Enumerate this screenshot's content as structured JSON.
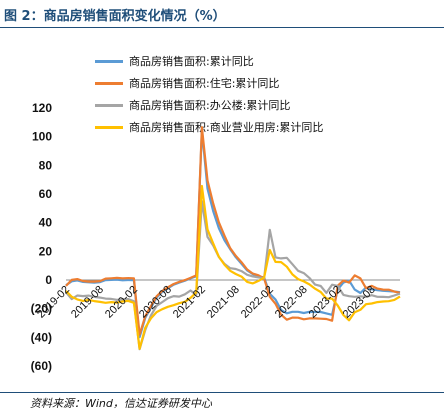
{
  "figure": {
    "title": "图 2：商品房销售面积变化情况（%）",
    "source": "资料来源：Wind，信达证券研发中心"
  },
  "chart_data": {
    "type": "line",
    "ylim": [
      -60,
      120
    ],
    "y_ticks": [
      120,
      100,
      80,
      60,
      40,
      20,
      0,
      -20,
      -40,
      -60
    ],
    "y_tick_labels": [
      "120",
      "100",
      "80",
      "60",
      "40",
      "20",
      "0",
      "(20)",
      "(40)",
      "(60)"
    ],
    "x_tick_labels": [
      "2019-02",
      "2019-08",
      "2020-02",
      "2020-08",
      "2021-02",
      "2021-08",
      "2022-02",
      "2022-08",
      "2023-02",
      "2023-08"
    ],
    "x_tick_index": [
      0,
      6,
      12,
      18,
      24,
      30,
      36,
      42,
      48,
      54
    ],
    "legend_position": "top",
    "grid": false,
    "series": [
      {
        "name": "商品房销售面积:累计同比",
        "color": "#5b9bd5",
        "values": [
          -3.6,
          -0.9,
          -0.3,
          -1.3,
          -1.6,
          -1.8,
          -1.5,
          -0.1,
          0.1,
          0.2,
          -0.2,
          0.0,
          -0.1,
          -39.9,
          -26.3,
          -19.3,
          -12.3,
          -8.4,
          -5.8,
          -3.3,
          -1.8,
          -0.5,
          1.1,
          2.6,
          104.9,
          63.8,
          48.1,
          36.3,
          27.7,
          21.5,
          15.9,
          11.3,
          6.6,
          4.1,
          2.4,
          1.9,
          -9.6,
          -13.6,
          -20.9,
          -23.2,
          -22.2,
          -22.2,
          -23.0,
          -22.2,
          -22.3,
          -22.3,
          -23.3,
          -24.3,
          -6.6,
          -1.8,
          -0.4,
          -6.7,
          -9.1,
          -5.2,
          -6.5,
          -7.1,
          -7.5,
          -7.8,
          -8.0,
          -8.5
        ]
      },
      {
        "name": "商品房销售面积:住宅:累计同比",
        "color": "#ed7d31",
        "values": [
          -4.1,
          0.1,
          0.6,
          -0.7,
          -1.1,
          -1.1,
          -0.8,
          1.0,
          1.2,
          1.5,
          1.1,
          1.3,
          1.1,
          -38.1,
          -25.2,
          -18.3,
          -11.4,
          -7.6,
          -5.1,
          -2.8,
          -1.3,
          -0.1,
          1.5,
          3.2,
          106.6,
          69.4,
          53.4,
          40.3,
          30.9,
          22.2,
          16.8,
          12.4,
          7.3,
          4.5,
          3.3,
          1.1,
          -11.7,
          -16.6,
          -24.2,
          -27.7,
          -26.2,
          -26.3,
          -27.4,
          -26.8,
          -26.8,
          -27.0,
          -27.2,
          -28.4,
          -4.0,
          -0.4,
          -1.8,
          3.2,
          1.1,
          -5.7,
          -4.1,
          -6.0,
          -6.7,
          -6.8,
          -8.1,
          -8.9
        ]
      },
      {
        "name": "商品房销售面积:办公楼:累计同比",
        "color": "#a5a5a5",
        "values": [
          -8.6,
          -13.3,
          -10.8,
          -11.2,
          -10.9,
          -11.8,
          -12.3,
          -13.0,
          -13.2,
          -13.8,
          -13.5,
          -13.3,
          -14.7,
          -48.3,
          -34.8,
          -24.7,
          -18.1,
          -15.4,
          -12.7,
          -11.2,
          -11.6,
          -10.0,
          -7.3,
          -10.4,
          55.0,
          30.1,
          24.1,
          16.1,
          11.2,
          8.2,
          7.7,
          6.2,
          3.6,
          2.5,
          1.8,
          1.2,
          35.0,
          15.8,
          15.1,
          15.5,
          11.0,
          6.4,
          4.8,
          1.5,
          -3.2,
          -4.2,
          -9.0,
          -3.3,
          -4.1,
          -10.4,
          -11.3,
          -11.7,
          -11.4,
          -11.8,
          -10.6,
          -11.7,
          -11.8,
          -12.0,
          -10.8,
          -9.5
        ]
      },
      {
        "name": "商品房销售面积:商业营业用房:累计同比",
        "color": "#ffc000",
        "values": [
          -7.6,
          -11.7,
          -13.5,
          -14.6,
          -13.9,
          -14.7,
          -15.3,
          -15.9,
          -15.4,
          -15.8,
          -15.0,
          -14.6,
          -15.9,
          -48.0,
          -33.3,
          -26.8,
          -22.4,
          -20.4,
          -18.7,
          -17.6,
          -16.2,
          -15.2,
          -12.5,
          -8.7,
          65.6,
          35.3,
          25.5,
          16.3,
          10.6,
          6.4,
          4.2,
          2.4,
          -1.3,
          -2.4,
          -0.6,
          1.7,
          20.9,
          12.6,
          12.5,
          9.3,
          3.9,
          0.6,
          -1.0,
          -3.1,
          -6.1,
          -8.4,
          -12.9,
          -13.0,
          -17.8,
          -24.4,
          -28.1,
          -22.5,
          -20.8,
          -16.9,
          -16.4,
          -15.4,
          -15.0,
          -14.8,
          -13.9,
          -11.5
        ]
      }
    ]
  }
}
